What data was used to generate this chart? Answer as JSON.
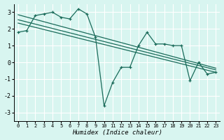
{
  "xlabel": "Humidex (Indice chaleur)",
  "background_color": "#d8f5f0",
  "grid_color": "#ffffff",
  "line_color": "#1a6b5a",
  "xlim": [
    -0.5,
    23.5
  ],
  "ylim": [
    -3.5,
    3.5
  ],
  "xticks": [
    0,
    1,
    2,
    3,
    4,
    5,
    6,
    7,
    8,
    9,
    10,
    11,
    12,
    13,
    14,
    15,
    16,
    17,
    18,
    19,
    20,
    21,
    22,
    23
  ],
  "yticks": [
    -3,
    -2,
    -1,
    0,
    1,
    2,
    3
  ],
  "zigzag": {
    "x": [
      0,
      1,
      2,
      3,
      4,
      5,
      6,
      7,
      8,
      9,
      10,
      11,
      12,
      13,
      14,
      15,
      16,
      17,
      18,
      19,
      20,
      21,
      22,
      23
    ],
    "y": [
      1.8,
      1.9,
      2.8,
      2.9,
      3.0,
      2.7,
      2.6,
      3.2,
      2.9,
      1.5,
      -2.6,
      -1.2,
      -0.3,
      -0.3,
      1.0,
      1.8,
      1.1,
      1.1,
      1.0,
      1.0,
      -1.1,
      0.0,
      -0.7,
      -0.6
    ]
  },
  "trend_lines": [
    {
      "x": [
        0,
        23
      ],
      "y": [
        2.85,
        -0.35
      ]
    },
    {
      "x": [
        0,
        23
      ],
      "y": [
        2.55,
        -0.45
      ]
    },
    {
      "x": [
        0,
        23
      ],
      "y": [
        2.35,
        -0.6
      ]
    }
  ]
}
